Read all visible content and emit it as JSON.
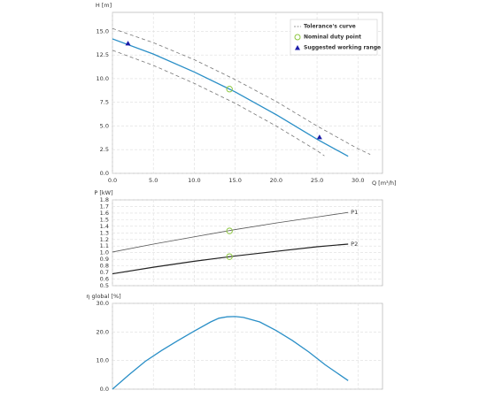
{
  "chart_data": [
    {
      "type": "line",
      "y_label": "H [m]",
      "x_label": "Q [m³/h]",
      "xlim": [
        0,
        33
      ],
      "ylim": [
        0,
        17
      ],
      "xticks": [
        {
          "value": 0,
          "label": "0.0"
        },
        {
          "value": 5,
          "label": "5.0"
        },
        {
          "value": 10,
          "label": "10.0"
        },
        {
          "value": 15,
          "label": "15.0"
        },
        {
          "value": 20,
          "label": "20.0"
        },
        {
          "value": 25,
          "label": "25.0"
        },
        {
          "value": 30,
          "label": "30.0"
        }
      ],
      "yticks": [
        {
          "value": 0,
          "label": "0.0"
        },
        {
          "value": 2.5,
          "label": "2.5"
        },
        {
          "value": 5,
          "label": "5.0"
        },
        {
          "value": 7.5,
          "label": "7.5"
        },
        {
          "value": 10,
          "label": "10.0"
        },
        {
          "value": 12.5,
          "label": "12.5"
        },
        {
          "value": 15,
          "label": "15.0"
        }
      ],
      "grid": true,
      "legend": "upper right",
      "series": [
        {
          "color": "#2a8fc7",
          "x": [
            0,
            5,
            10,
            15,
            20,
            25,
            28.8
          ],
          "values": [
            14.2,
            12.6,
            10.7,
            8.6,
            6.2,
            3.6,
            1.8
          ]
        }
      ],
      "tolerance": {
        "name": "Tolerance's curve",
        "color": "#777777",
        "upper": {
          "x": [
            0,
            5,
            10,
            15,
            20,
            25,
            30,
            31.5
          ],
          "values": [
            15.3,
            13.8,
            12.0,
            9.9,
            7.6,
            5.0,
            2.6,
            2.0
          ]
        },
        "lower": {
          "x": [
            0,
            5,
            10,
            15,
            20,
            25,
            25.9
          ],
          "values": [
            13.0,
            11.4,
            9.5,
            7.4,
            5.0,
            2.4,
            1.85
          ]
        }
      },
      "nominal": {
        "name": "Nominal duty point",
        "color": "#8cc63f",
        "x": [
          14.3
        ],
        "y": [
          8.9
        ]
      },
      "working_range": {
        "name": "Suggested working range",
        "color": "#1a1aa8",
        "x": [
          1.9,
          25.3
        ],
        "y": [
          13.7,
          3.8
        ]
      }
    },
    {
      "type": "line",
      "y_label": "P [kW]",
      "xlim": [
        0,
        33
      ],
      "ylim": [
        0.5,
        1.8
      ],
      "yticks": [
        0.5,
        0.6,
        0.7,
        0.8,
        0.9,
        {
          "value": 1,
          "label": "1.0"
        },
        1.1,
        1.2,
        1.3,
        1.4,
        1.5,
        1.6,
        1.7,
        1.8
      ],
      "grid": true,
      "series": [
        {
          "name": "P1",
          "color": "#555555",
          "x": [
            0,
            5,
            10,
            15,
            20,
            25,
            28.8
          ],
          "values": [
            1.01,
            1.13,
            1.24,
            1.35,
            1.45,
            1.54,
            1.61
          ]
        },
        {
          "name": "P2",
          "color": "#222222",
          "x": [
            0,
            5,
            10,
            15,
            20,
            25,
            28.8
          ],
          "values": [
            0.68,
            0.78,
            0.87,
            0.95,
            1.02,
            1.09,
            1.13
          ]
        }
      ],
      "nominal": {
        "color": "#8cc63f",
        "x": [
          14.3,
          14.3
        ],
        "y": [
          1.33,
          0.94
        ]
      }
    },
    {
      "type": "line",
      "y_label": "η global [%]",
      "xlim": [
        0,
        33
      ],
      "ylim": [
        0,
        30
      ],
      "yticks": [
        {
          "value": 0,
          "label": "0.0"
        },
        {
          "value": 10,
          "label": "10.0"
        },
        {
          "value": 20,
          "label": "20.0"
        },
        {
          "value": 30,
          "label": "30.0"
        }
      ],
      "grid": true,
      "series": [
        {
          "color": "#2a8fc7",
          "x": [
            0,
            2,
            4,
            6,
            8,
            10,
            12,
            13,
            14,
            15,
            16,
            18,
            20,
            22,
            24,
            26,
            28.8
          ],
          "values": [
            0,
            5,
            9.7,
            13.5,
            17,
            20.3,
            23.5,
            24.8,
            25.3,
            25.4,
            25.1,
            23.5,
            20.5,
            17,
            13,
            8.5,
            3
          ]
        }
      ]
    }
  ]
}
